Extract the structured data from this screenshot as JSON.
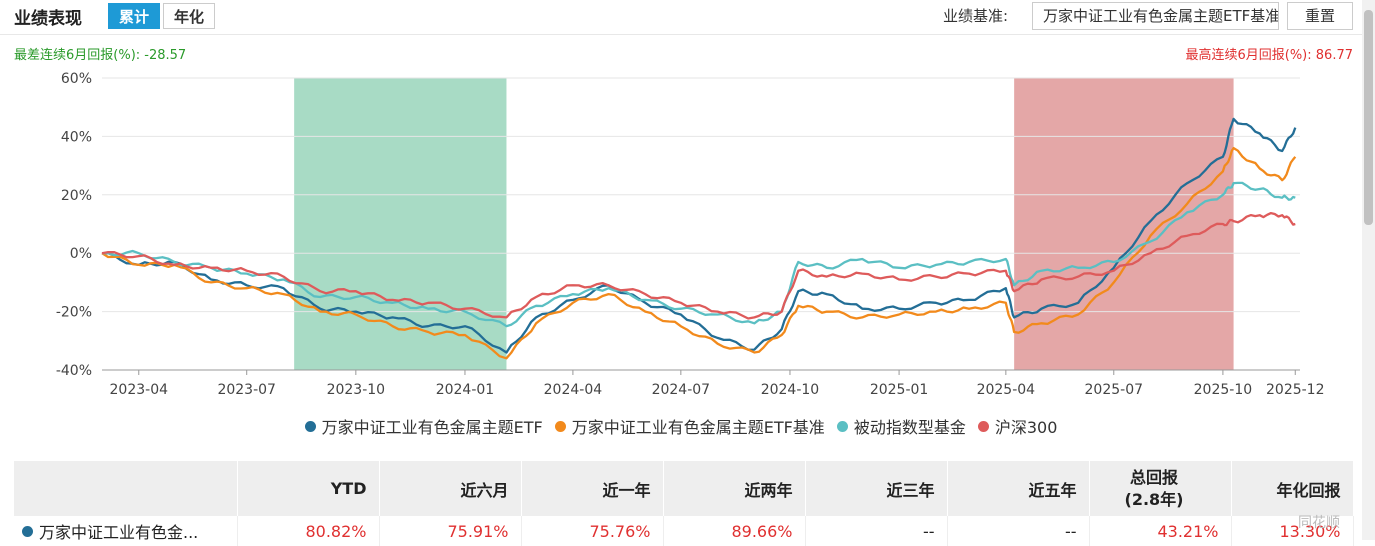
{
  "header": {
    "title": "业绩表现",
    "tab_cumulative": "累计",
    "tab_annualized": "年化",
    "benchmark_label": "业绩基准:",
    "benchmark_value": "万家中证工业有色金属主题ETF基准",
    "reset_label": "重置"
  },
  "drawdown": {
    "worst_label": "最差连续6月回报(%):",
    "worst_value": "-28.57",
    "best_label": "最高连续6月回报(%):",
    "best_value": "86.77"
  },
  "colors": {
    "fund": "#236e96",
    "benchmark": "#f28a1c",
    "category": "#5bbfc3",
    "hs300": "#de5b5b",
    "band_green": "#a3d9c2",
    "band_red": "#e3a2a2",
    "accent": "#1e9ad6"
  },
  "chart_data": {
    "type": "line",
    "x_ticks": [
      "2023-04",
      "2023-07",
      "2023-10",
      "2024-01",
      "2024-04",
      "2024-07",
      "2024-10",
      "2025-01",
      "2025-04",
      "2025-07",
      "2025-10",
      "2025-12"
    ],
    "y_ticks": [
      "60%",
      "40%",
      "20%",
      "0%",
      "-20%",
      "-40%"
    ],
    "ylim": [
      -40,
      60
    ],
    "bands": [
      {
        "type": "worst",
        "from": "2023-08-10",
        "to": "2024-02-05"
      },
      {
        "type": "best",
        "from": "2025-04-08",
        "to": "2025-10-10"
      }
    ],
    "x": [
      "2023-03-01",
      "2023-04-01",
      "2023-05-01",
      "2023-06-01",
      "2023-07-01",
      "2023-08-01",
      "2023-09-01",
      "2023-10-01",
      "2023-11-01",
      "2023-12-01",
      "2024-01-01",
      "2024-02-05",
      "2024-03-01",
      "2024-04-01",
      "2024-05-01",
      "2024-06-01",
      "2024-07-01",
      "2024-08-01",
      "2024-09-01",
      "2024-09-24",
      "2024-10-08",
      "2024-11-01",
      "2024-12-01",
      "2025-01-01",
      "2025-02-01",
      "2025-03-01",
      "2025-04-01",
      "2025-04-08",
      "2025-05-01",
      "2025-06-01",
      "2025-07-01",
      "2025-08-01",
      "2025-09-01",
      "2025-10-01",
      "2025-10-10",
      "2025-11-01",
      "2025-11-20",
      "2025-12-01"
    ],
    "series": [
      {
        "name": "万家中证工业有色金属主题ETF",
        "color_key": "fund",
        "values": [
          0,
          -4,
          -3,
          -9,
          -11,
          -12,
          -19,
          -20,
          -22,
          -25,
          -25,
          -34,
          -22,
          -16,
          -11,
          -17,
          -21,
          -29,
          -33,
          -26,
          -13,
          -14,
          -19,
          -19,
          -17,
          -16,
          -12,
          -22,
          -19,
          -17,
          -5,
          11,
          24,
          33,
          46,
          41,
          35,
          43
        ]
      },
      {
        "name": "万家中证工业有色金属主题ETF基准",
        "color_key": "benchmark",
        "values": [
          0,
          -4,
          -4,
          -10,
          -12,
          -14,
          -20,
          -21,
          -25,
          -27,
          -28,
          -36,
          -24,
          -17,
          -14,
          -20,
          -25,
          -31,
          -34,
          -28,
          -18,
          -20,
          -22,
          -21,
          -20,
          -19,
          -17,
          -27,
          -24,
          -21,
          -10,
          6,
          17,
          28,
          36,
          29,
          25,
          33
        ]
      },
      {
        "name": "被动指数型基金",
        "color_key": "category",
        "values": [
          0,
          0,
          -3,
          -5,
          -7,
          -9,
          -15,
          -15,
          -17,
          -19,
          -20,
          -25,
          -18,
          -14,
          -12,
          -16,
          -19,
          -21,
          -24,
          -20,
          -3,
          -5,
          -2,
          -5,
          -4,
          -3,
          -2,
          -11,
          -6,
          -5,
          -3,
          4,
          14,
          20,
          24,
          22,
          19,
          19
        ]
      },
      {
        "name": "沪深300",
        "color_key": "hs300",
        "values": [
          0,
          -1,
          -4,
          -5,
          -6,
          -8,
          -13,
          -13,
          -16,
          -17,
          -19,
          -22,
          -15,
          -11,
          -11,
          -14,
          -17,
          -20,
          -22,
          -20,
          -6,
          -8,
          -7,
          -9,
          -8,
          -7,
          -6,
          -13,
          -9,
          -8,
          -6,
          0,
          6,
          10,
          11,
          13,
          13,
          10
        ]
      }
    ]
  },
  "legend": [
    {
      "label": "万家中证工业有色金属主题ETF",
      "color_key": "fund"
    },
    {
      "label": "万家中证工业有色金属主题ETF基准",
      "color_key": "benchmark"
    },
    {
      "label": "被动指数型基金",
      "color_key": "category"
    },
    {
      "label": "沪深300",
      "color_key": "hs300"
    }
  ],
  "table": {
    "headers": [
      "",
      "YTD",
      "近六月",
      "近一年",
      "近两年",
      "近三年",
      "近五年",
      "总回报",
      "(2.8年)",
      "年化回报"
    ],
    "row": {
      "name": "万家中证工业有色金...",
      "values": [
        "80.82%",
        "75.91%",
        "75.76%",
        "89.66%",
        "--",
        "--",
        "43.21%",
        "13.30%"
      ]
    }
  },
  "watermark": "同花顺"
}
